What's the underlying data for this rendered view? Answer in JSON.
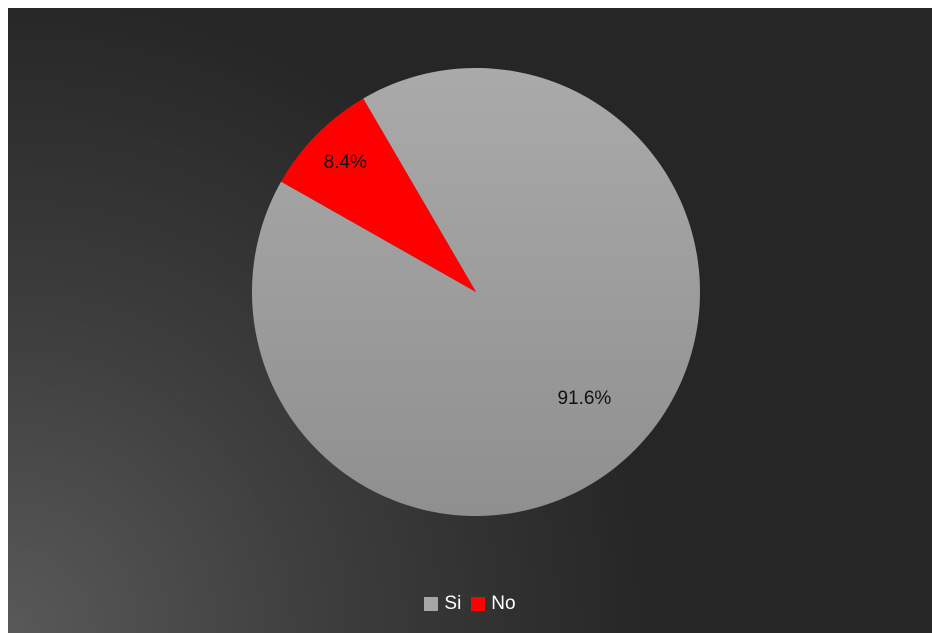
{
  "chart_data": {
    "type": "pie",
    "categories": [
      "Si",
      "No"
    ],
    "values": [
      91.6,
      8.4
    ],
    "labels": [
      "91.6%",
      "8.4%"
    ],
    "colors": [
      "#a6a6a6",
      "#ff0000"
    ],
    "start_angle_deg": -30.24,
    "direction": "clockwise",
    "title": "",
    "legend_position": "bottom",
    "background": "dark-gradient"
  },
  "legend": {
    "items": [
      {
        "label": "Si",
        "color": "#a6a6a6"
      },
      {
        "label": "No",
        "color": "#ff0000"
      }
    ]
  }
}
